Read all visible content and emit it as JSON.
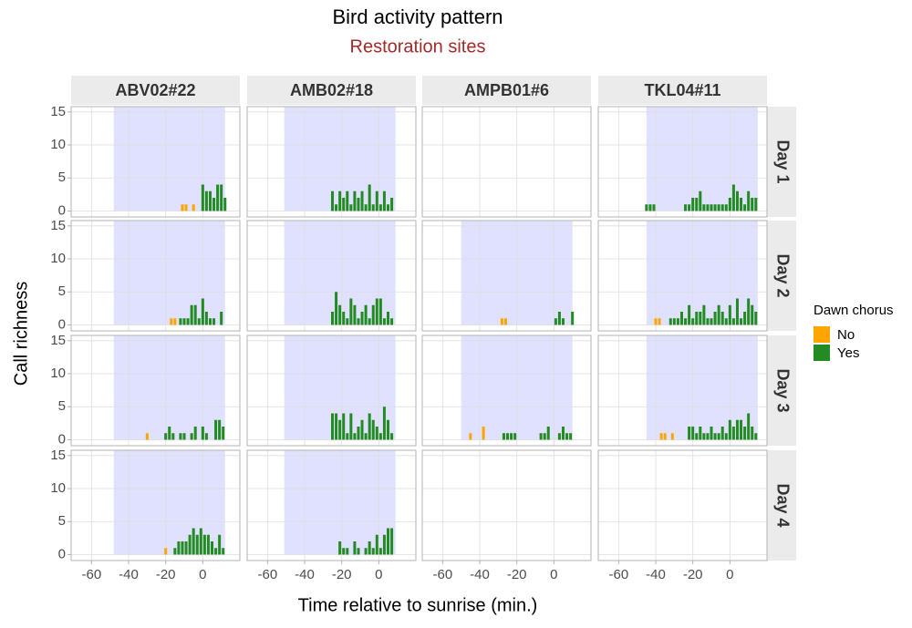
{
  "chart_data": {
    "type": "bar",
    "title": "Bird activity pattern",
    "subtitle": "Restoration sites",
    "x_label": "Time relative to sunrise (min.)",
    "y_label": "Call richness",
    "legend_title": "Dawn chorus",
    "series": [
      {
        "name": "No",
        "color": "#FFA500"
      },
      {
        "name": "Yes",
        "color": "#228B22"
      }
    ],
    "xlim": [
      -71,
      20
    ],
    "ylim": [
      -0.9,
      15.8
    ],
    "xticks": [
      -60,
      -40,
      -20,
      0
    ],
    "yticks": [
      0,
      5,
      10,
      15
    ],
    "grid": true,
    "shade_color": "#e0e0ff",
    "sites": [
      "ABV02#22",
      "AMB02#18",
      "AMPB01#6",
      "TKL04#11"
    ],
    "days": [
      "Day 1",
      "Day 2",
      "Day 3",
      "Day 4"
    ],
    "panels": [
      {
        "shade": [
          -48,
          12
        ],
        "series": [
          {
            "x": [
              -11,
              -9,
              -5
            ],
            "values": [
              1,
              1,
              1
            ]
          },
          {
            "x": [
              0,
              2,
              4,
              6,
              8,
              10,
              12
            ],
            "values": [
              4,
              3,
              3,
              2,
              4,
              4,
              2
            ]
          }
        ]
      },
      {
        "shade": [
          -51,
          9
        ],
        "series": [
          {
            "x": [],
            "values": []
          },
          {
            "x": [
              -25,
              -23,
              -21,
              -19,
              -17,
              -15,
              -13,
              -11,
              -9,
              -7,
              -5,
              -3,
              -1,
              1,
              3,
              5,
              7
            ],
            "values": [
              3,
              1,
              3,
              2,
              3,
              1,
              3,
              2,
              3,
              1,
              4,
              1,
              3,
              1,
              3,
              1,
              2
            ]
          }
        ]
      },
      {
        "shade": null,
        "series": [
          {
            "x": [],
            "values": []
          },
          {
            "x": [],
            "values": []
          }
        ]
      },
      {
        "shade": [
          -45,
          15
        ],
        "series": [
          {
            "x": [],
            "values": []
          },
          {
            "x": [
              -45,
              -43,
              -41,
              -24,
              -22,
              -20,
              -18,
              -16,
              -14,
              -12,
              -10,
              -8,
              -6,
              -4,
              -2,
              0,
              2,
              4,
              6,
              8,
              10,
              12,
              14
            ],
            "values": [
              1,
              1,
              1,
              1,
              1,
              2,
              2,
              3,
              1,
              1,
              1,
              1,
              1,
              1,
              1,
              2,
              4,
              3,
              2,
              1,
              3,
              2,
              2
            ]
          }
        ]
      },
      {
        "shade": [
          -48,
          12
        ],
        "series": [
          {
            "x": [
              -17,
              -15
            ],
            "values": [
              1,
              1
            ]
          },
          {
            "x": [
              -12,
              -10,
              -8,
              -6,
              -4,
              -2,
              0,
              2,
              4,
              6,
              10
            ],
            "values": [
              1,
              1,
              1,
              3,
              3,
              1,
              4,
              2,
              1,
              1,
              2
            ]
          }
        ]
      },
      {
        "shade": [
          -51,
          9
        ],
        "series": [
          {
            "x": [],
            "values": []
          },
          {
            "x": [
              -25,
              -23,
              -21,
              -19,
              -17,
              -15,
              -13,
              -11,
              -9,
              -7,
              -5,
              -3,
              -1,
              1,
              3,
              5,
              7
            ],
            "values": [
              2,
              5,
              3,
              2,
              1,
              4,
              3,
              1,
              2,
              3,
              1,
              3,
              4,
              4,
              1,
              2,
              1
            ]
          }
        ]
      },
      {
        "shade": [
          -50,
          10
        ],
        "series": [
          {
            "x": [
              -28,
              -26
            ],
            "values": [
              1,
              1
            ]
          },
          {
            "x": [
              1,
              3,
              5,
              10
            ],
            "values": [
              1,
              2,
              1,
              2
            ]
          }
        ]
      },
      {
        "shade": [
          -45,
          15
        ],
        "series": [
          {
            "x": [
              -40,
              -38
            ],
            "values": [
              1,
              1
            ]
          },
          {
            "x": [
              -32,
              -30,
              -28,
              -26,
              -24,
              -22,
              -20,
              -18,
              -16,
              -14,
              -12,
              -10,
              -8,
              -6,
              -4,
              -2,
              0,
              2,
              4,
              6,
              8,
              10,
              12,
              14
            ],
            "values": [
              1,
              1,
              1,
              2,
              1,
              3,
              1,
              2,
              2,
              3,
              1,
              1,
              2,
              3,
              2,
              1,
              3,
              1,
              4,
              1,
              2,
              4,
              3,
              2
            ]
          }
        ]
      },
      {
        "shade": [
          -48,
          12
        ],
        "series": [
          {
            "x": [
              -30
            ],
            "values": [
              1
            ]
          },
          {
            "x": [
              -20,
              -18,
              -16,
              -12,
              -10,
              -6,
              -4,
              0,
              2,
              7,
              9,
              11
            ],
            "values": [
              1,
              2,
              1,
              1,
              1,
              1,
              2,
              2,
              1,
              3,
              3,
              2
            ]
          }
        ]
      },
      {
        "shade": [
          -51,
          9
        ],
        "series": [
          {
            "x": [],
            "values": []
          },
          {
            "x": [
              -25,
              -23,
              -21,
              -19,
              -17,
              -15,
              -13,
              -11,
              -9,
              -7,
              -5,
              -3,
              -1,
              1,
              3,
              5,
              7
            ],
            "values": [
              4,
              4,
              3,
              4,
              1,
              4,
              1,
              2,
              3,
              1,
              4,
              3,
              2,
              1,
              5,
              3,
              1
            ]
          }
        ]
      },
      {
        "shade": [
          -50,
          10
        ],
        "series": [
          {
            "x": [
              -45,
              -38
            ],
            "values": [
              1,
              2
            ]
          },
          {
            "x": [
              -27,
              -25,
              -23,
              -21,
              -7,
              -5,
              -3,
              3,
              5,
              7,
              9
            ],
            "values": [
              1,
              1,
              1,
              1,
              1,
              1,
              2,
              1,
              2,
              1,
              1
            ]
          }
        ]
      },
      {
        "shade": [
          -45,
          15
        ],
        "series": [
          {
            "x": [
              -37,
              -35,
              -31
            ],
            "values": [
              1,
              1,
              1
            ]
          },
          {
            "x": [
              -22,
              -20,
              -18,
              -16,
              -14,
              -12,
              -10,
              -8,
              -6,
              -4,
              -2,
              0,
              2,
              4,
              6,
              8,
              10,
              12,
              14
            ],
            "values": [
              2,
              2,
              1,
              2,
              1,
              1,
              2,
              1,
              1,
              2,
              1,
              3,
              2,
              3,
              3,
              2,
              4,
              2,
              1
            ]
          }
        ]
      },
      {
        "shade": [
          -48,
          12
        ],
        "series": [
          {
            "x": [
              -20
            ],
            "values": [
              1
            ]
          },
          {
            "x": [
              -15,
              -13,
              -11,
              -9,
              -7,
              -5,
              -3,
              -1,
              1,
              3,
              5,
              7,
              9,
              11
            ],
            "values": [
              1,
              2,
              2,
              2,
              3,
              4,
              3,
              4,
              3,
              3,
              2,
              1,
              3,
              1
            ]
          }
        ]
      },
      {
        "shade": [
          -51,
          9
        ],
        "series": [
          {
            "x": [],
            "values": []
          },
          {
            "x": [
              -21,
              -19,
              -17,
              -13,
              -11,
              -7,
              -5,
              -3,
              -1,
              1,
              3,
              5,
              7
            ],
            "values": [
              2,
              1,
              1,
              2,
              1,
              1,
              2,
              1,
              3,
              1,
              3,
              4,
              4
            ]
          }
        ]
      },
      {
        "shade": null,
        "series": [
          {
            "x": [],
            "values": []
          },
          {
            "x": [],
            "values": []
          }
        ]
      },
      {
        "shade": null,
        "series": [
          {
            "x": [],
            "values": []
          },
          {
            "x": [],
            "values": []
          }
        ]
      }
    ]
  }
}
